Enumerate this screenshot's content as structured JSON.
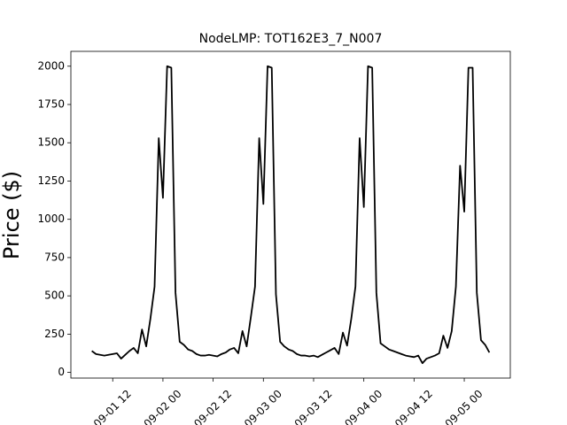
{
  "chart_data": {
    "type": "line",
    "title": "NodeLMP: TOT162E3_7_N007",
    "y_label": "Price ($)",
    "color": "#000000",
    "x": [
      "09-01 07",
      "09-01 08",
      "09-01 09",
      "09-01 10",
      "09-01 11",
      "09-01 12",
      "09-01 13",
      "09-01 14",
      "09-01 15",
      "09-01 16",
      "09-01 17",
      "09-01 18",
      "09-01 19",
      "09-01 20",
      "09-01 21",
      "09-01 22",
      "09-01 23",
      "09-02 00",
      "09-02 01",
      "09-02 02",
      "09-02 03",
      "09-02 04",
      "09-02 05",
      "09-02 06",
      "09-02 07",
      "09-02 08",
      "09-02 09",
      "09-02 10",
      "09-02 11",
      "09-02 12",
      "09-02 13",
      "09-02 14",
      "09-02 15",
      "09-02 16",
      "09-02 17",
      "09-02 18",
      "09-02 19",
      "09-02 20",
      "09-02 21",
      "09-02 22",
      "09-02 23",
      "09-03 00",
      "09-03 01",
      "09-03 02",
      "09-03 03",
      "09-03 04",
      "09-03 05",
      "09-03 06",
      "09-03 07",
      "09-03 08",
      "09-03 09",
      "09-03 10",
      "09-03 11",
      "09-03 12",
      "09-03 13",
      "09-03 14",
      "09-03 15",
      "09-03 16",
      "09-03 17",
      "09-03 18",
      "09-03 19",
      "09-03 20",
      "09-03 21",
      "09-03 22",
      "09-03 23",
      "09-04 00",
      "09-04 01",
      "09-04 02",
      "09-04 03",
      "09-04 04",
      "09-04 05",
      "09-04 06",
      "09-04 07",
      "09-04 08",
      "09-04 09",
      "09-04 10",
      "09-04 11",
      "09-04 12",
      "09-04 13",
      "09-04 14",
      "09-04 15",
      "09-04 16",
      "09-04 17",
      "09-04 18",
      "09-04 19",
      "09-04 20",
      "09-04 21",
      "09-04 22",
      "09-04 23",
      "09-05 00",
      "09-05 01",
      "09-05 02",
      "09-05 03",
      "09-05 04",
      "09-05 05",
      "09-05 06"
    ],
    "values": [
      140,
      120,
      115,
      110,
      115,
      120,
      125,
      90,
      115,
      140,
      160,
      125,
      280,
      170,
      350,
      560,
      1530,
      1140,
      2000,
      1990,
      520,
      200,
      180,
      150,
      140,
      120,
      110,
      110,
      115,
      110,
      105,
      120,
      130,
      150,
      160,
      125,
      270,
      170,
      360,
      560,
      1530,
      1100,
      2000,
      1990,
      510,
      200,
      170,
      150,
      140,
      120,
      110,
      110,
      105,
      110,
      100,
      115,
      130,
      145,
      160,
      120,
      260,
      175,
      350,
      560,
      1530,
      1080,
      2000,
      1990,
      520,
      190,
      170,
      150,
      140,
      130,
      120,
      110,
      105,
      100,
      110,
      60,
      90,
      100,
      110,
      125,
      240,
      160,
      270,
      560,
      1350,
      1050,
      1990,
      1990,
      520,
      210,
      180,
      130
    ],
    "xlim": [
      "09-01 02",
      "09-05 11"
    ],
    "xticks": [
      "09-01 12",
      "09-02 00",
      "09-02 12",
      "09-03 00",
      "09-03 12",
      "09-04 00",
      "09-04 12",
      "09-05 00"
    ],
    "ylim": [
      -37,
      2097
    ],
    "yticks": [
      0,
      250,
      500,
      750,
      1000,
      1250,
      1500,
      1750,
      2000
    ]
  }
}
